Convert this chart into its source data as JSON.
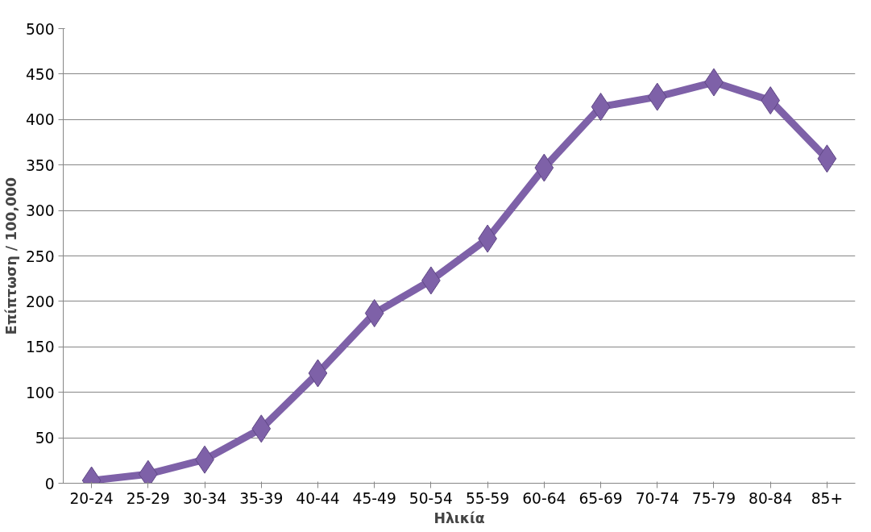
{
  "chart_data": {
    "type": "line",
    "xlabel": "Ηλικία",
    "ylabel": "Επίπτωση / 100,000",
    "categories": [
      "20-24",
      "25-29",
      "30-34",
      "35-39",
      "40-44",
      "45-49",
      "50-54",
      "55-59",
      "60-64",
      "65-69",
      "70-74",
      "75-79",
      "80-84",
      "85+"
    ],
    "series": [
      {
        "color": "#7e61a8",
        "values": [
          3,
          10,
          26,
          60,
          121,
          187,
          223,
          269,
          347,
          414,
          425,
          441,
          421,
          357
        ]
      }
    ],
    "ylim": [
      0,
      500
    ],
    "yticks": [
      0,
      50,
      100,
      150,
      200,
      250,
      300,
      350,
      400,
      450,
      500
    ],
    "grid": "y",
    "marker": "diamond",
    "line_style": "solid"
  }
}
